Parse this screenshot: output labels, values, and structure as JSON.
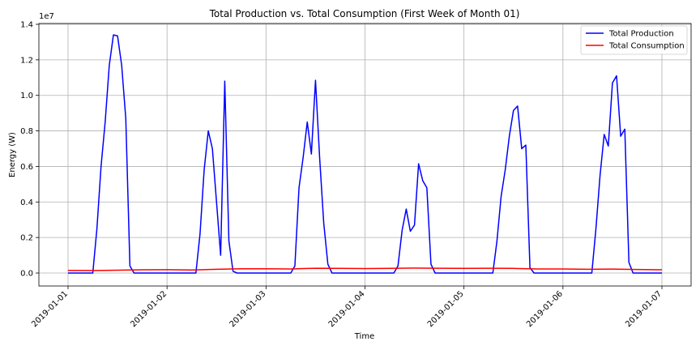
{
  "chart_data": {
    "type": "line",
    "title": "Total Production vs. Total Consumption (First Week of Month 01)",
    "xlabel": "Time",
    "ylabel": "Energy (W)",
    "y_offset_label": "1e7",
    "xlim": [
      "2019-01-01",
      "2019-01-07"
    ],
    "ylim": [
      0,
      14000000
    ],
    "x_ticks": [
      "2019-01-01",
      "2019-01-02",
      "2019-01-03",
      "2019-01-04",
      "2019-01-05",
      "2019-01-06",
      "2019-01-07"
    ],
    "y_ticks": [
      0,
      2000000,
      4000000,
      6000000,
      8000000,
      10000000,
      12000000,
      14000000
    ],
    "y_tick_labels": [
      "0.0",
      "0.2",
      "0.4",
      "0.6",
      "0.8",
      "1.0",
      "1.2",
      "1.4"
    ],
    "grid": true,
    "legend_position": "top-right",
    "series": [
      {
        "name": "Total Production",
        "color": "#0000ff",
        "points": [
          [
            "2019-01-01 00:00",
            0
          ],
          [
            "2019-01-01 06:00",
            0
          ],
          [
            "2019-01-01 07:00",
            2500000
          ],
          [
            "2019-01-01 08:00",
            6000000
          ],
          [
            "2019-01-01 09:00",
            8500000
          ],
          [
            "2019-01-01 10:00",
            11700000
          ],
          [
            "2019-01-01 11:00",
            13400000
          ],
          [
            "2019-01-01 12:00",
            13350000
          ],
          [
            "2019-01-01 13:00",
            11700000
          ],
          [
            "2019-01-01 14:00",
            8700000
          ],
          [
            "2019-01-01 15:00",
            400000
          ],
          [
            "2019-01-01 16:00",
            0
          ],
          [
            "2019-01-02 07:00",
            0
          ],
          [
            "2019-01-02 08:00",
            2200000
          ],
          [
            "2019-01-02 09:00",
            5800000
          ],
          [
            "2019-01-02 10:00",
            8000000
          ],
          [
            "2019-01-02 11:00",
            7000000
          ],
          [
            "2019-01-02 12:00",
            4000000
          ],
          [
            "2019-01-02 13:00",
            1000000
          ],
          [
            "2019-01-02 14:00",
            10800000
          ],
          [
            "2019-01-02 15:00",
            1800000
          ],
          [
            "2019-01-02 16:00",
            100000
          ],
          [
            "2019-01-02 17:00",
            0
          ],
          [
            "2019-01-03 06:00",
            0
          ],
          [
            "2019-01-03 07:00",
            400000
          ],
          [
            "2019-01-03 08:00",
            4800000
          ],
          [
            "2019-01-03 09:00",
            6500000
          ],
          [
            "2019-01-03 10:00",
            8500000
          ],
          [
            "2019-01-03 11:00",
            6700000
          ],
          [
            "2019-01-03 12:00",
            10850000
          ],
          [
            "2019-01-03 13:00",
            6500000
          ],
          [
            "2019-01-03 14:00",
            2800000
          ],
          [
            "2019-01-03 15:00",
            500000
          ],
          [
            "2019-01-03 16:00",
            0
          ],
          [
            "2019-01-04 07:00",
            0
          ],
          [
            "2019-01-04 08:00",
            400000
          ],
          [
            "2019-01-04 09:00",
            2400000
          ],
          [
            "2019-01-04 10:00",
            3600000
          ],
          [
            "2019-01-04 11:00",
            2350000
          ],
          [
            "2019-01-04 12:00",
            2700000
          ],
          [
            "2019-01-04 13:00",
            6150000
          ],
          [
            "2019-01-04 14:00",
            5200000
          ],
          [
            "2019-01-04 15:00",
            4800000
          ],
          [
            "2019-01-04 16:00",
            500000
          ],
          [
            "2019-01-04 17:00",
            0
          ],
          [
            "2019-01-05 07:00",
            0
          ],
          [
            "2019-01-05 08:00",
            1800000
          ],
          [
            "2019-01-05 09:00",
            4300000
          ],
          [
            "2019-01-05 10:00",
            5800000
          ],
          [
            "2019-01-05 11:00",
            7700000
          ],
          [
            "2019-01-05 12:00",
            9150000
          ],
          [
            "2019-01-05 13:00",
            9400000
          ],
          [
            "2019-01-05 14:00",
            7000000
          ],
          [
            "2019-01-05 15:00",
            7200000
          ],
          [
            "2019-01-05 16:00",
            300000
          ],
          [
            "2019-01-05 17:00",
            0
          ],
          [
            "2019-01-06 07:00",
            0
          ],
          [
            "2019-01-06 08:00",
            2500000
          ],
          [
            "2019-01-06 09:00",
            5500000
          ],
          [
            "2019-01-06 10:00",
            7800000
          ],
          [
            "2019-01-06 11:00",
            7150000
          ],
          [
            "2019-01-06 12:00",
            10700000
          ],
          [
            "2019-01-06 13:00",
            11100000
          ],
          [
            "2019-01-06 14:00",
            7700000
          ],
          [
            "2019-01-06 15:00",
            8100000
          ],
          [
            "2019-01-06 16:00",
            600000
          ],
          [
            "2019-01-06 17:00",
            0
          ],
          [
            "2019-01-07 00:00",
            0
          ]
        ]
      },
      {
        "name": "Total Consumption",
        "color": "#ff0000",
        "points": [
          [
            "2019-01-01 00:00",
            150000
          ],
          [
            "2019-01-01 06:00",
            140000
          ],
          [
            "2019-01-01 12:00",
            160000
          ],
          [
            "2019-01-01 18:00",
            180000
          ],
          [
            "2019-01-02 00:00",
            190000
          ],
          [
            "2019-01-02 06:00",
            170000
          ],
          [
            "2019-01-02 12:00",
            210000
          ],
          [
            "2019-01-02 18:00",
            240000
          ],
          [
            "2019-01-03 00:00",
            240000
          ],
          [
            "2019-01-03 06:00",
            230000
          ],
          [
            "2019-01-03 12:00",
            270000
          ],
          [
            "2019-01-03 18:00",
            260000
          ],
          [
            "2019-01-04 00:00",
            250000
          ],
          [
            "2019-01-04 06:00",
            260000
          ],
          [
            "2019-01-04 12:00",
            280000
          ],
          [
            "2019-01-04 18:00",
            270000
          ],
          [
            "2019-01-05 00:00",
            260000
          ],
          [
            "2019-01-05 06:00",
            270000
          ],
          [
            "2019-01-05 12:00",
            260000
          ],
          [
            "2019-01-05 18:00",
            230000
          ],
          [
            "2019-01-06 00:00",
            230000
          ],
          [
            "2019-01-06 06:00",
            210000
          ],
          [
            "2019-01-06 12:00",
            220000
          ],
          [
            "2019-01-06 18:00",
            200000
          ],
          [
            "2019-01-07 00:00",
            180000
          ]
        ]
      }
    ]
  }
}
